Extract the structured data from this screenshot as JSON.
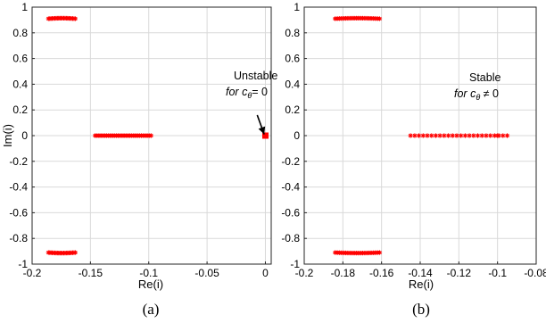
{
  "chart_data": [
    {
      "type": "scatter",
      "caption": "(a)",
      "xlabel": "Re(i)",
      "ylabel": "Im(i)",
      "xlim": [
        -0.2,
        0.005
      ],
      "ylim": [
        -1,
        1
      ],
      "x_ticks": [
        -0.2,
        -0.15,
        -0.1,
        -0.05,
        0
      ],
      "x_tick_labels": [
        "-0.2",
        "-0.15",
        "-0.1",
        "-0.05",
        "0"
      ],
      "y_ticks": [
        1,
        0.8,
        0.6,
        0.4,
        0.2,
        0,
        -0.2,
        -0.4,
        -0.6,
        -0.8,
        -1
      ],
      "y_tick_labels": [
        "1",
        "0.8",
        "0.6",
        "0.4",
        "0.2",
        "0",
        "-0.2",
        "-0.4",
        "-0.6",
        "-0.8",
        "-1"
      ],
      "grid": true,
      "marker_color": "#ff0000",
      "series": [
        {
          "x_start": -0.186,
          "x_end": -0.163,
          "y_center": 0.91,
          "y_sag": 0.004,
          "count": 22,
          "marker": "asterisk"
        },
        {
          "x_start": -0.186,
          "x_end": -0.163,
          "y_center": -0.91,
          "y_sag": -0.004,
          "count": 22,
          "marker": "asterisk"
        },
        {
          "x_start": -0.146,
          "x_end": -0.098,
          "y_center": 0,
          "y_sag": 0,
          "count": 30,
          "marker": "asterisk"
        },
        {
          "x": [
            0
          ],
          "y": [
            0
          ],
          "marker": "square"
        }
      ],
      "annotation": {
        "line1": "Unstable",
        "line2_prefix": "for ",
        "line2_symbol": "c",
        "line2_sub": "θ",
        "line2_suffix": "= 0",
        "arrow_from": [
          -0.007,
          0.16
        ],
        "arrow_to": [
          -0.001,
          0.01
        ]
      }
    },
    {
      "type": "scatter",
      "caption": "(b)",
      "xlabel": "Re(i)",
      "ylabel": "",
      "xlim": [
        -0.2,
        -0.08
      ],
      "ylim": [
        -1,
        1
      ],
      "x_ticks": [
        -0.2,
        -0.18,
        -0.16,
        -0.14,
        -0.12,
        -0.1,
        -0.08
      ],
      "x_tick_labels": [
        "-0.2",
        "-0.18",
        "-0.16",
        "-0.14",
        "-0.12",
        "-0.1",
        "-0.08"
      ],
      "y_ticks": [
        1,
        0.8,
        0.6,
        0.4,
        0.2,
        0,
        -0.2,
        -0.4,
        -0.6,
        -0.8,
        -1
      ],
      "y_tick_labels": [
        "1",
        "0.8",
        "0.6",
        "0.4",
        "0.2",
        "0",
        "-0.2",
        "-0.4",
        "-0.6",
        "-0.8",
        "-1"
      ],
      "grid": true,
      "marker_color": "#ff0000",
      "series": [
        {
          "x_start": -0.184,
          "x_end": -0.161,
          "y_center": 0.91,
          "y_sag": 0.004,
          "count": 22,
          "marker": "asterisk"
        },
        {
          "x_start": -0.184,
          "x_end": -0.161,
          "y_center": -0.91,
          "y_sag": -0.004,
          "count": 22,
          "marker": "asterisk"
        },
        {
          "x_start": -0.145,
          "x_end": -0.095,
          "y_center": 0,
          "y_sag": 0,
          "count": 24,
          "marker": "asterisk"
        },
        {
          "x": [
            -0.1
          ],
          "y": [
            0
          ],
          "marker": "asterisk"
        }
      ],
      "annotation": {
        "line1": "Stable",
        "line2_prefix": "for ",
        "line2_symbol": "c",
        "line2_sub": "θ",
        "line2_suffix": " ≠ 0"
      }
    }
  ]
}
